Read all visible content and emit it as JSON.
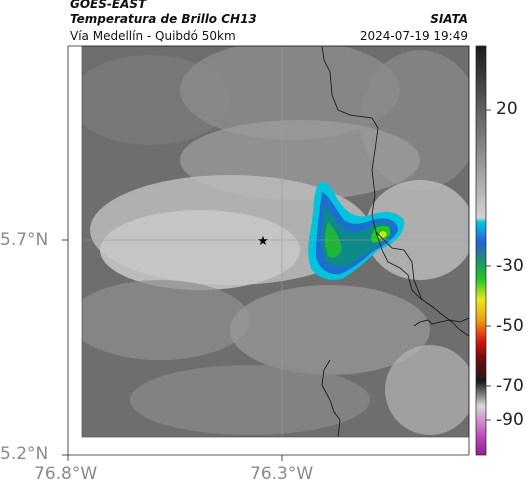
{
  "header": {
    "satellite": "GOES-EAST",
    "product": "Temperatura de Brillo CH13",
    "region": "Vía Medellín - Quibdó 50km",
    "organization": "SIATA",
    "datetime": "2024-07-19 19:49"
  },
  "axes": {
    "lat_labels": [
      "5.7°N",
      "5.2°N"
    ],
    "lon_labels": [
      "76.8°W",
      "76.3°W"
    ]
  },
  "colorbar": {
    "tick_labels": [
      "20",
      "-30",
      "-50",
      "-70",
      "-90"
    ],
    "ticks": [
      20,
      -30,
      -50,
      -70,
      -90
    ],
    "range": [
      30,
      -92
    ]
  },
  "marker": {
    "icon": "star-icon"
  },
  "colors": {
    "cloud_blue": "#1a6fd1",
    "cloud_teal": "#0e9fb0",
    "cloud_green": "#1fb53a",
    "core_yellow": "#c8e81a"
  }
}
